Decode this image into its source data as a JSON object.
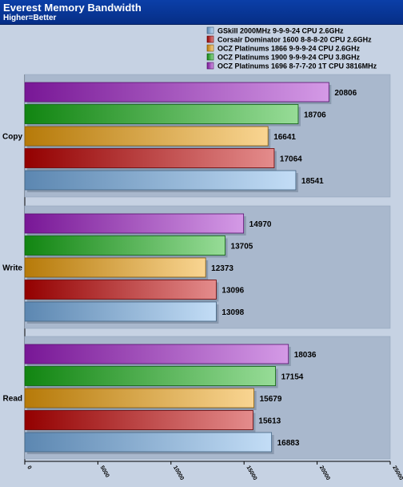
{
  "header": {
    "title": "Everest Memory Bandwidth",
    "subtitle": "Higher=Better"
  },
  "chart_data": {
    "type": "bar",
    "orientation": "horizontal",
    "title": "Everest Memory Bandwidth",
    "subtitle": "Higher=Better",
    "xlim": [
      0,
      25000
    ],
    "x_ticks": [
      "0",
      "5000",
      "10000",
      "15000",
      "20000",
      "25000"
    ],
    "categories": [
      "Copy",
      "Write",
      "Read"
    ],
    "legend_position": "top-right",
    "grid": false,
    "series": [
      {
        "name": "GSkill 2000MHz 9-9-9-24 CPU 2.6GHz",
        "color": "#7ab4ec",
        "values": [
          18541,
          13098,
          16883
        ]
      },
      {
        "name": "Corsair Dominator 1600 8-8-8-20 CPU 2.6GHz",
        "color": "#c40000",
        "values": [
          17064,
          13096,
          15613
        ]
      },
      {
        "name": "OCZ Platinums 1866 9-9-9-24 CPU 2.6GHz",
        "color": "#f2a20c",
        "values": [
          16641,
          12373,
          15679
        ]
      },
      {
        "name": "OCZ Platinums 1900 9-9-9-24 CPU 3.8GHz",
        "color": "#17b117",
        "values": [
          18706,
          13705,
          17154
        ]
      },
      {
        "name": "OCZ Platinums 1696 8-7-7-20 1T CPU 3816MHz",
        "color": "#a01ec8",
        "values": [
          20806,
          14970,
          18036
        ]
      }
    ]
  }
}
